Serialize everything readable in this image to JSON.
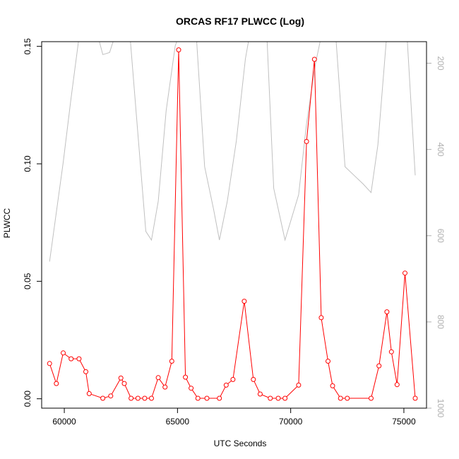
{
  "chart_data": {
    "type": "line",
    "title": "ORCAS RF17 PLWCC (Log)",
    "xlabel": "UTC Seconds",
    "ylabel": "PLWCC",
    "xlim": [
      59000,
      76000
    ],
    "ylim": [
      -0.004,
      0.152
    ],
    "x_ticks": [
      60000,
      65000,
      70000,
      75000
    ],
    "x_tick_labels": [
      "60000",
      "65000",
      "70000",
      "75000"
    ],
    "y_ticks": [
      0.0,
      0.05,
      0.1,
      0.15
    ],
    "y_tick_labels": [
      "0.00",
      "0.05",
      "0.10",
      "0.15"
    ],
    "y2_range": [
      1000,
      150
    ],
    "y2_ticks": [
      200,
      400,
      600,
      800,
      1000
    ],
    "y2_tick_labels": [
      "200",
      "400",
      "600",
      "800",
      "1000"
    ],
    "grid": false,
    "series": [
      {
        "color": "#ff0000",
        "marker": "open-circle",
        "axis": "left",
        "x": [
          59350,
          59650,
          59950,
          60300,
          60650,
          60950,
          61100,
          61700,
          62050,
          62500,
          62650,
          62950,
          63250,
          63550,
          63850,
          64150,
          64450,
          64750,
          65050,
          65350,
          65600,
          65900,
          66300,
          66850,
          67150,
          67450,
          67950,
          68350,
          68650,
          69100,
          69450,
          69750,
          70350,
          70700,
          71050,
          71350,
          71650,
          71850,
          72200,
          72500,
          73550,
          73900,
          74250,
          74450,
          74700,
          75050,
          75500
        ],
        "y": [
          0.015,
          0.0065,
          0.0195,
          0.017,
          0.017,
          0.0115,
          0.0022,
          0.0002,
          0.0012,
          0.0088,
          0.0065,
          0.0002,
          0.0002,
          0.0002,
          0.0002,
          0.009,
          0.005,
          0.016,
          0.1485,
          0.0092,
          0.0045,
          0.0002,
          0.0002,
          0.0002,
          0.0058,
          0.0082,
          0.0415,
          0.0082,
          0.002,
          0.0002,
          0.0002,
          0.0002,
          0.0058,
          0.1095,
          0.1445,
          0.0345,
          0.016,
          0.0055,
          0.0002,
          0.0002,
          0.0002,
          0.014,
          0.037,
          0.02,
          0.006,
          0.0535,
          0.0002
        ]
      },
      {
        "color": "#c0c0c0",
        "marker": "none",
        "axis": "right",
        "x": [
          59350,
          59950,
          60300,
          60650,
          61000,
          61500,
          61700,
          62000,
          62400,
          62800,
          63200,
          63600,
          63850,
          64150,
          64500,
          64900,
          65300,
          65800,
          66200,
          66600,
          66850,
          67200,
          67600,
          68000,
          68400,
          68900,
          69250,
          69750,
          70350,
          70700,
          71100,
          71500,
          71900,
          72400,
          72800,
          73200,
          73550,
          73850,
          74250,
          74700,
          75100,
          75500
        ],
        "y": [
          660,
          430,
          280,
          140,
          70,
          140,
          180,
          175,
          110,
          70,
          330,
          590,
          610,
          520,
          310,
          160,
          100,
          110,
          440,
          540,
          610,
          520,
          380,
          190,
          70,
          80,
          490,
          610,
          505,
          340,
          200,
          100,
          70,
          440,
          460,
          480,
          500,
          390,
          130,
          60,
          100,
          460
        ]
      }
    ]
  }
}
